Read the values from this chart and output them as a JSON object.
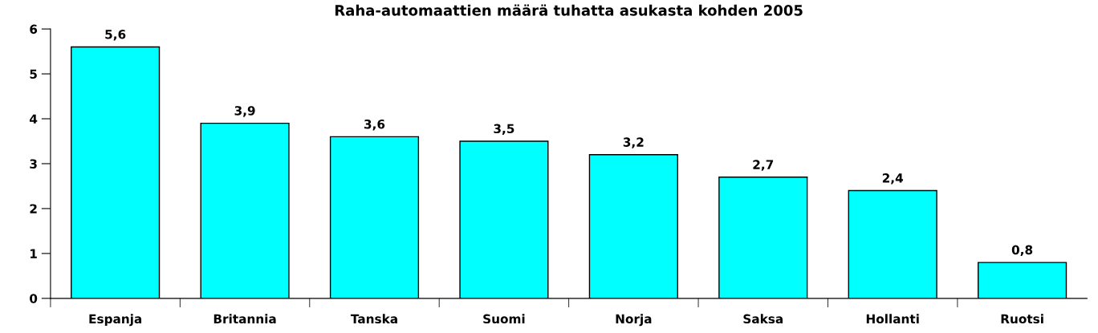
{
  "chart_data": {
    "type": "bar",
    "title": "Raha-automaattien määrä tuhatta asukasta kohden 2005",
    "categories": [
      "Espanja",
      "Britannia",
      "Tanska",
      "Suomi",
      "Norja",
      "Saksa",
      "Hollanti",
      "Ruotsi"
    ],
    "values": [
      5.6,
      3.9,
      3.6,
      3.5,
      3.2,
      2.7,
      2.4,
      0.8
    ],
    "value_labels": [
      "5,6",
      "3,9",
      "3,6",
      "3,5",
      "3,2",
      "2,7",
      "2,4",
      "0,8"
    ],
    "color": "#00ffff",
    "ylim": [
      0,
      6
    ],
    "yticks": [
      0,
      1,
      2,
      3,
      4,
      5,
      6
    ],
    "grid": false
  }
}
